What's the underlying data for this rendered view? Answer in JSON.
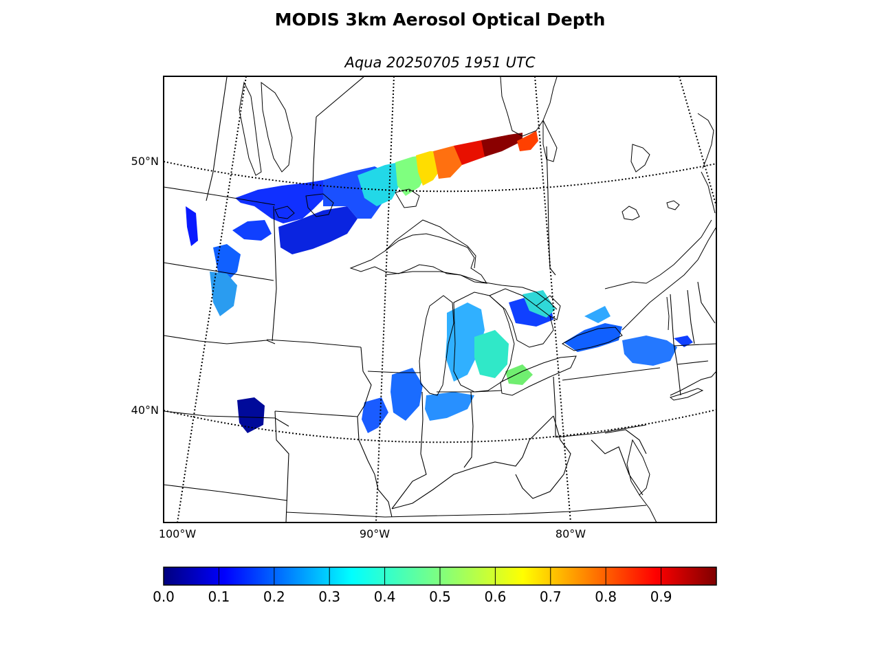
{
  "figure": {
    "title": "MODIS 3km Aerosol Optical Depth",
    "subtitle": "Aqua 20250705 1951 UTC"
  },
  "map": {
    "lat_labels": [
      {
        "value": 50,
        "label": "50°N"
      },
      {
        "value": 40,
        "label": "40°N"
      }
    ],
    "lon_labels": [
      {
        "value": -100,
        "label": "100°W"
      },
      {
        "value": -90,
        "label": "90°W"
      },
      {
        "value": -80,
        "label": "80°W"
      }
    ],
    "graticule_style": "dotted",
    "region": "Great Lakes / Midwest / Northeastern US and southern Canada"
  },
  "colorbar": {
    "min": 0.0,
    "max": 1.0,
    "colormap": "jet",
    "ticks": [
      {
        "value": 0.0,
        "label": "0.0"
      },
      {
        "value": 0.1,
        "label": "0.1"
      },
      {
        "value": 0.2,
        "label": "0.2"
      },
      {
        "value": 0.3,
        "label": "0.3"
      },
      {
        "value": 0.4,
        "label": "0.4"
      },
      {
        "value": 0.5,
        "label": "0.5"
      },
      {
        "value": 0.6,
        "label": "0.6"
      },
      {
        "value": 0.7,
        "label": "0.7"
      },
      {
        "value": 0.8,
        "label": "0.8"
      },
      {
        "value": 0.9,
        "label": "0.9"
      }
    ],
    "colors": [
      "#00007f",
      "#0000ff",
      "#007fff",
      "#00ffff",
      "#7fff7f",
      "#ffff00",
      "#ff7f00",
      "#ff0000",
      "#7f0000"
    ]
  }
}
